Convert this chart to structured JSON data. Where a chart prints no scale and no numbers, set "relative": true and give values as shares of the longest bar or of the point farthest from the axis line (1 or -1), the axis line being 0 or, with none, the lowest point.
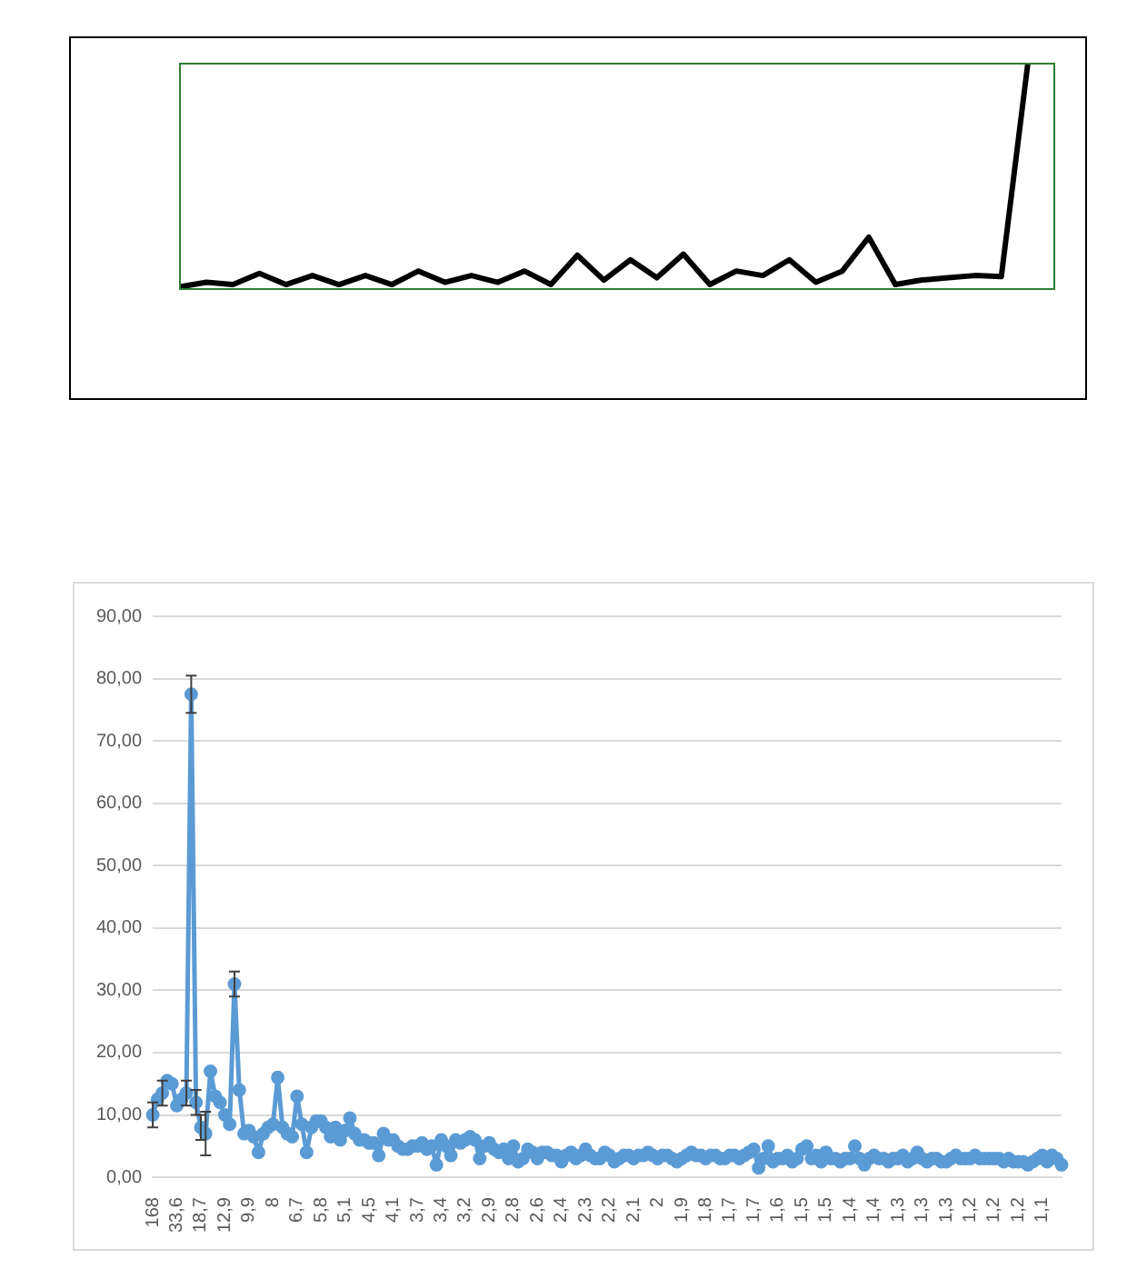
{
  "chart_data": [
    {
      "type": "line",
      "relative": true,
      "grid": false,
      "marker": "none",
      "line_style": "solid",
      "categories": [
        null,
        null,
        null,
        null,
        null,
        null,
        null,
        null,
        null,
        null,
        null,
        null,
        null,
        null,
        null,
        null,
        null,
        null,
        null,
        null,
        null,
        null,
        null,
        null,
        null,
        null,
        null,
        null,
        null,
        null,
        null,
        null,
        null,
        null
      ],
      "series": [
        {
          "color": "#000000",
          "values": [
            0.01,
            0.03,
            0.02,
            0.07,
            0.02,
            0.06,
            0.02,
            0.06,
            0.02,
            0.08,
            0.03,
            0.06,
            0.03,
            0.08,
            0.02,
            0.15,
            0.04,
            0.13,
            0.05,
            0.155,
            0.02,
            0.08,
            0.06,
            0.13,
            0.03,
            0.08,
            0.23,
            0.02,
            0.04,
            0.05,
            0.06,
            0.055,
            1.0,
            null
          ]
        }
      ]
    },
    {
      "type": "line",
      "grid": "y",
      "marker": "circle",
      "line_style": "solid",
      "ylim": [
        0,
        90
      ],
      "yticks": [
        {
          "value": 0,
          "label": "0,00"
        },
        {
          "value": 10,
          "label": "10,00"
        },
        {
          "value": 20,
          "label": "20,00"
        },
        {
          "value": 30,
          "label": "30,00"
        },
        {
          "value": 40,
          "label": "40,00"
        },
        {
          "value": 50,
          "label": "50,00"
        },
        {
          "value": 60,
          "label": "60,00"
        },
        {
          "value": 70,
          "label": "70,00"
        },
        {
          "value": 80,
          "label": "80,00"
        },
        {
          "value": 90,
          "label": "90,00"
        }
      ],
      "categories": [
        "168",
        null,
        null,
        null,
        null,
        "33,6",
        null,
        null,
        null,
        null,
        "18,7",
        null,
        null,
        null,
        null,
        "12,9",
        null,
        null,
        null,
        null,
        "9,9",
        null,
        null,
        null,
        null,
        "8",
        null,
        null,
        null,
        null,
        "6,7",
        null,
        null,
        null,
        null,
        "5,8",
        null,
        null,
        null,
        null,
        "5,1",
        null,
        null,
        null,
        null,
        "4,5",
        null,
        null,
        null,
        null,
        "4,1",
        null,
        null,
        null,
        null,
        "3,7",
        null,
        null,
        null,
        null,
        "3,4",
        null,
        null,
        null,
        null,
        "3,2",
        null,
        null,
        null,
        null,
        "2,9",
        null,
        null,
        null,
        null,
        "2,8",
        null,
        null,
        null,
        null,
        "2,6",
        null,
        null,
        null,
        null,
        "2,4",
        null,
        null,
        null,
        null,
        "2,3",
        null,
        null,
        null,
        null,
        "2,2",
        null,
        null,
        null,
        null,
        "2,1",
        null,
        null,
        null,
        null,
        "2",
        null,
        null,
        null,
        null,
        "1,9",
        null,
        null,
        null,
        null,
        "1,8",
        null,
        null,
        null,
        null,
        "1,7",
        null,
        null,
        null,
        null,
        "1,7",
        null,
        null,
        null,
        null,
        "1,6",
        null,
        null,
        null,
        null,
        "1,5",
        null,
        null,
        null,
        null,
        "1,5",
        null,
        null,
        null,
        null,
        "1,4",
        null,
        null,
        null,
        null,
        "1,4",
        null,
        null,
        null,
        null,
        "1,3",
        null,
        null,
        null,
        null,
        "1,3",
        null,
        null,
        null,
        null,
        "1,3",
        null,
        null,
        null,
        null,
        "1,2",
        null,
        null,
        null,
        null,
        "1,2",
        null,
        null,
        null,
        null,
        "1,2",
        null,
        null,
        null,
        null,
        "1,1",
        null,
        null,
        null,
        null
      ],
      "series": [
        {
          "color": "#5b9bd5",
          "values": [
            10,
            12.5,
            13.5,
            15.5,
            15,
            11.5,
            12.5,
            13.5,
            77.5,
            12,
            8,
            7,
            17,
            13,
            12,
            10,
            8.5,
            31,
            14,
            7,
            7.5,
            6.5,
            4,
            7,
            8,
            8.5,
            16,
            8,
            7,
            6.5,
            13,
            8.5,
            4,
            8,
            9,
            9,
            8,
            6.5,
            8,
            6,
            7.5,
            9.5,
            7,
            6,
            6,
            5.5,
            5.5,
            3.5,
            7,
            6,
            6,
            5,
            4.5,
            4.5,
            5,
            5,
            5.5,
            4.5,
            5,
            2,
            6,
            5,
            3.5,
            6,
            5.5,
            6,
            6.5,
            6,
            3,
            5,
            5.5,
            4.5,
            4,
            4.5,
            3,
            5,
            2.5,
            3,
            4.5,
            4,
            3,
            4,
            4,
            3.5,
            3.5,
            2.5,
            3.5,
            4,
            3,
            3.5,
            4.5,
            3.5,
            3,
            3,
            4,
            3.5,
            2.5,
            3,
            3.5,
            3.5,
            3,
            3.5,
            3.5,
            4,
            3.5,
            3,
            3.5,
            3.5,
            3,
            2.5,
            3,
            3.5,
            4,
            3.5,
            3.5,
            3,
            3.5,
            3.5,
            3,
            3,
            3.5,
            3.5,
            3,
            3.5,
            4,
            4.5,
            1.5,
            3,
            5,
            2.5,
            3,
            3,
            3.5,
            2.5,
            3,
            4.5,
            5,
            3,
            3.5,
            2.5,
            4,
            3,
            3,
            2.5,
            3,
            3,
            5,
            3,
            2,
            3,
            3.5,
            3,
            3,
            2.5,
            3,
            3,
            3.5,
            2.5,
            3,
            4,
            3,
            2.5,
            3,
            3,
            2.5,
            2.5,
            3,
            3.5,
            3,
            3,
            3,
            3.5,
            3,
            3,
            3,
            3,
            3,
            2.5,
            3,
            2.5,
            2.5,
            2.5,
            2,
            2.5,
            3,
            3.5,
            2.5,
            3.5,
            3,
            2
          ],
          "errors": [
            2,
            null,
            2,
            null,
            null,
            null,
            null,
            2,
            3,
            2,
            2,
            3.5,
            null,
            null,
            null,
            null,
            null,
            2,
            null,
            null,
            null,
            null,
            null,
            null,
            null,
            null,
            null,
            null,
            null,
            null,
            null,
            null,
            null,
            null,
            null,
            null,
            null,
            null,
            null,
            null,
            null,
            null,
            null,
            null,
            null,
            null,
            null,
            null,
            null,
            null,
            null,
            null,
            null,
            null,
            null,
            null,
            null,
            null,
            null,
            null,
            null,
            null,
            null,
            null,
            null,
            null,
            null,
            null,
            null,
            null,
            null,
            null,
            null,
            null,
            null,
            null,
            null,
            null,
            null,
            null,
            null,
            null,
            null,
            null,
            null,
            null,
            null,
            null,
            null,
            null,
            null,
            null,
            null,
            null,
            null,
            null,
            null,
            null,
            null,
            null,
            null,
            null,
            null,
            null,
            null,
            null,
            null,
            null,
            null,
            null,
            null,
            null,
            null,
            null,
            null,
            null,
            null,
            null,
            null,
            null,
            null,
            null,
            null,
            null,
            null,
            null,
            null,
            null,
            null,
            null,
            null,
            null,
            null,
            null,
            null,
            null,
            null,
            null,
            null,
            null,
            null,
            null,
            null,
            null,
            null,
            null,
            null,
            null,
            null,
            null,
            null,
            null,
            null,
            null,
            null,
            null,
            null,
            null,
            null,
            null,
            null,
            null,
            null,
            null,
            null,
            null,
            null,
            null,
            null,
            null,
            null,
            null,
            null,
            null,
            null,
            null,
            null,
            null,
            null,
            null,
            null,
            null,
            null,
            null,
            null,
            null,
            null,
            null,
            null,
            null
          ]
        }
      ]
    }
  ]
}
